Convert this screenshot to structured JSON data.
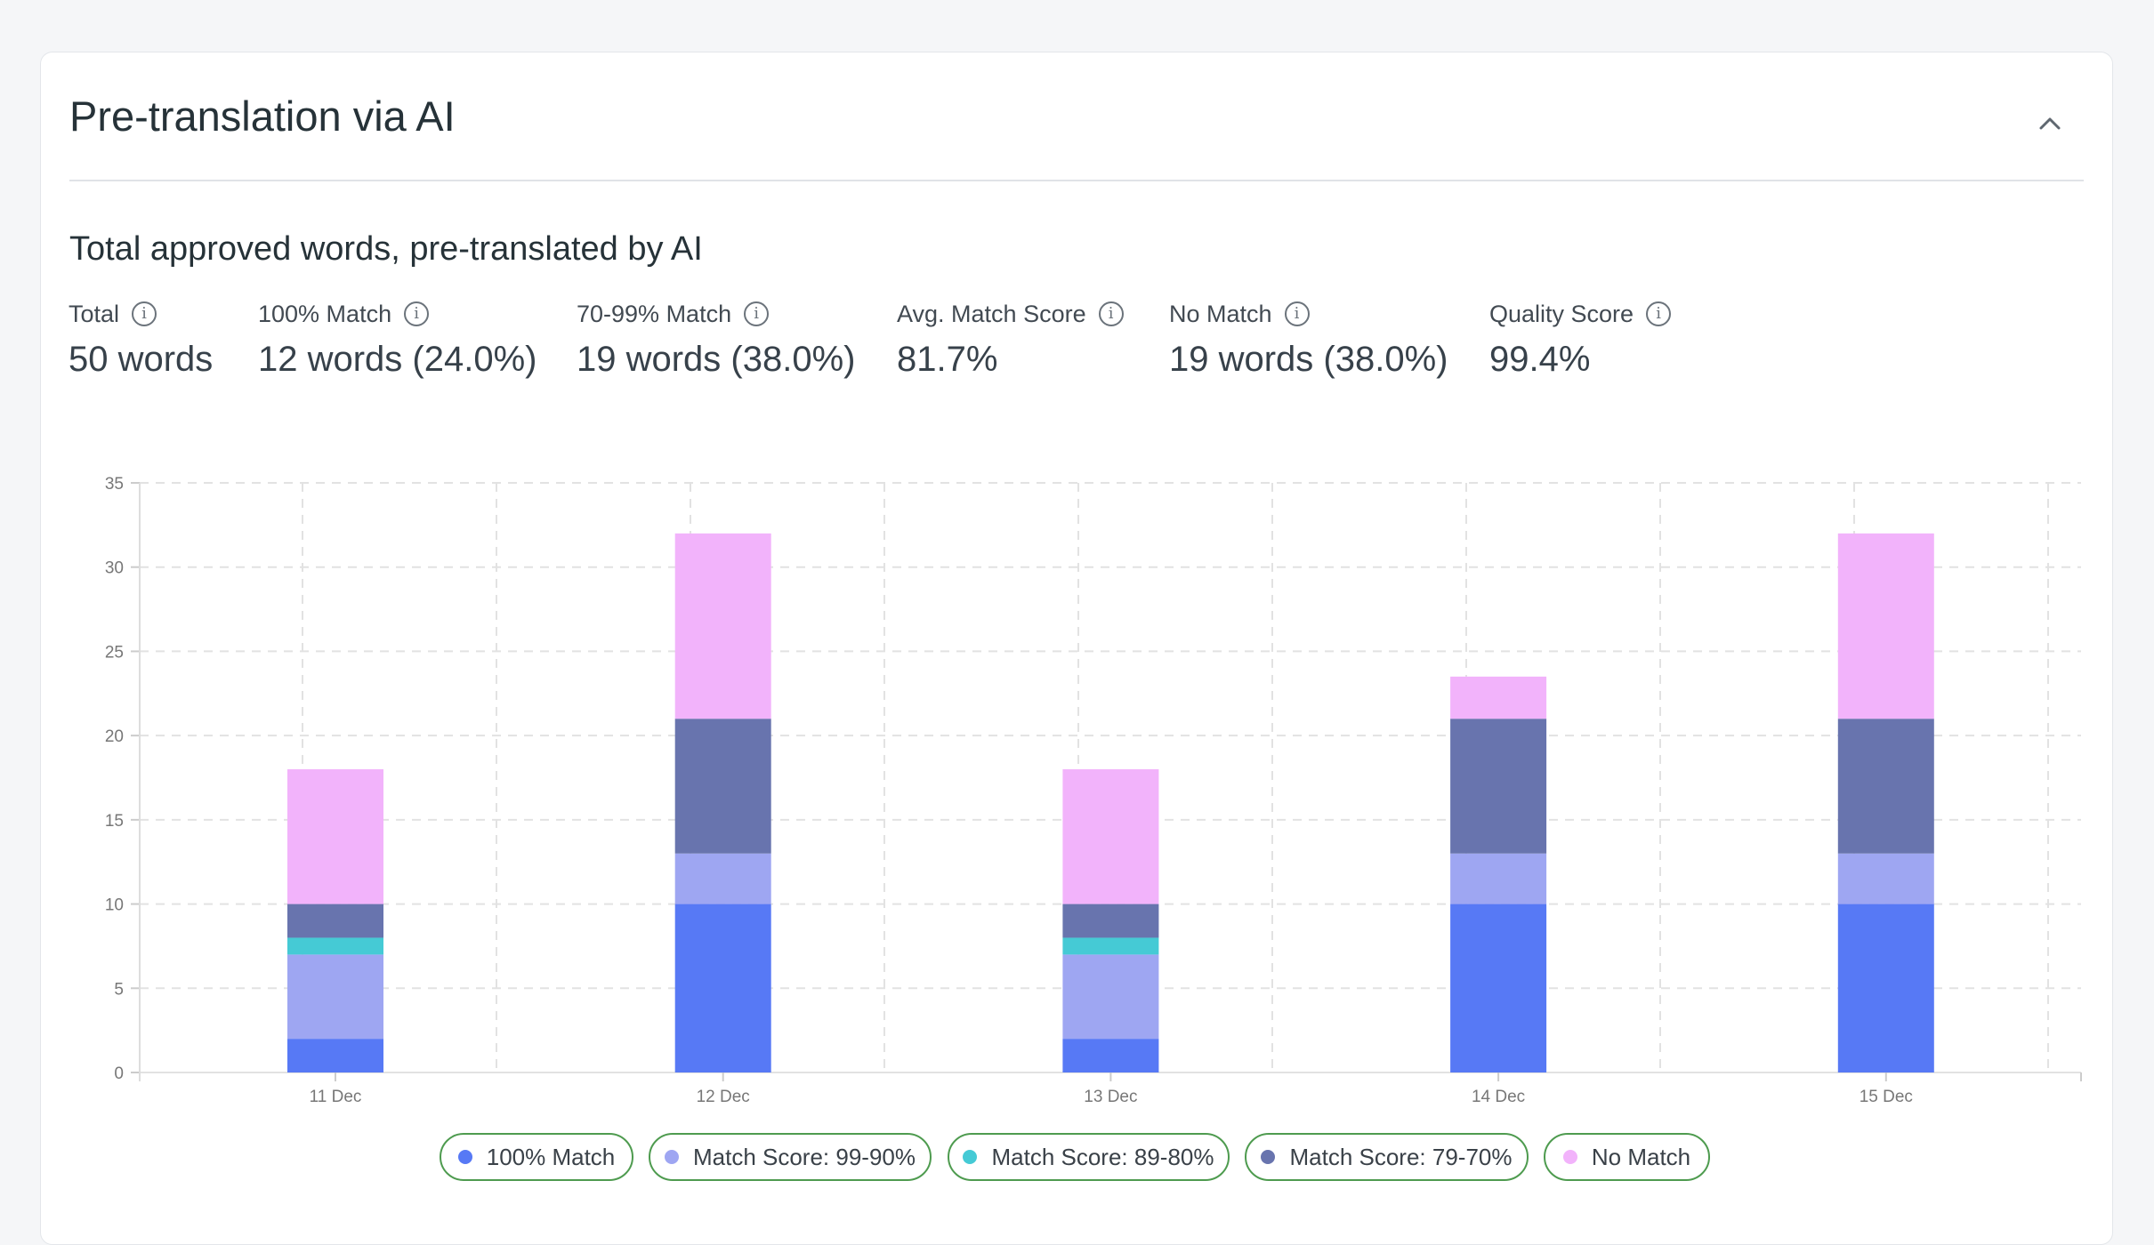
{
  "card": {
    "title": "Pre-translation via AI",
    "collapse_icon": "chevron-up-icon"
  },
  "section": {
    "subtitle": "Total approved words, pre-translated by AI"
  },
  "stats": [
    {
      "label": "Total",
      "value": "50 words"
    },
    {
      "label": "100% Match",
      "value": "12 words (24.0%)"
    },
    {
      "label": "70-99% Match",
      "value": "19 words (38.0%)"
    },
    {
      "label": "Avg. Match Score",
      "value": "81.7%"
    },
    {
      "label": "No Match",
      "value": "19 words (38.0%)"
    },
    {
      "label": "Quality Score",
      "value": "99.4%"
    }
  ],
  "info_icon": "i",
  "chart_data": {
    "type": "bar",
    "stacked": true,
    "categories": [
      "11 Dec",
      "12 Dec",
      "13 Dec",
      "14 Dec",
      "15 Dec"
    ],
    "series": [
      {
        "name": "100% Match",
        "color": "#5779f5",
        "values": [
          2,
          10,
          2,
          10,
          10
        ]
      },
      {
        "name": "Match Score: 99-90%",
        "color": "#9ea6f2",
        "values": [
          5,
          3,
          5,
          3,
          3
        ]
      },
      {
        "name": "Match Score: 89-80%",
        "color": "#45cad5",
        "values": [
          1,
          0,
          1,
          0,
          0
        ]
      },
      {
        "name": "Match Score: 79-70%",
        "color": "#6874ae",
        "values": [
          2,
          8,
          2,
          8,
          8
        ]
      },
      {
        "name": "No Match",
        "color": "#f2b3fb",
        "values": [
          8,
          11,
          8,
          2.5,
          11
        ]
      }
    ],
    "ylim": [
      0,
      35
    ],
    "yticks": [
      "0",
      "5",
      "10",
      "15",
      "20",
      "25",
      "30",
      "35"
    ],
    "grid": true,
    "legend": "bottom"
  }
}
